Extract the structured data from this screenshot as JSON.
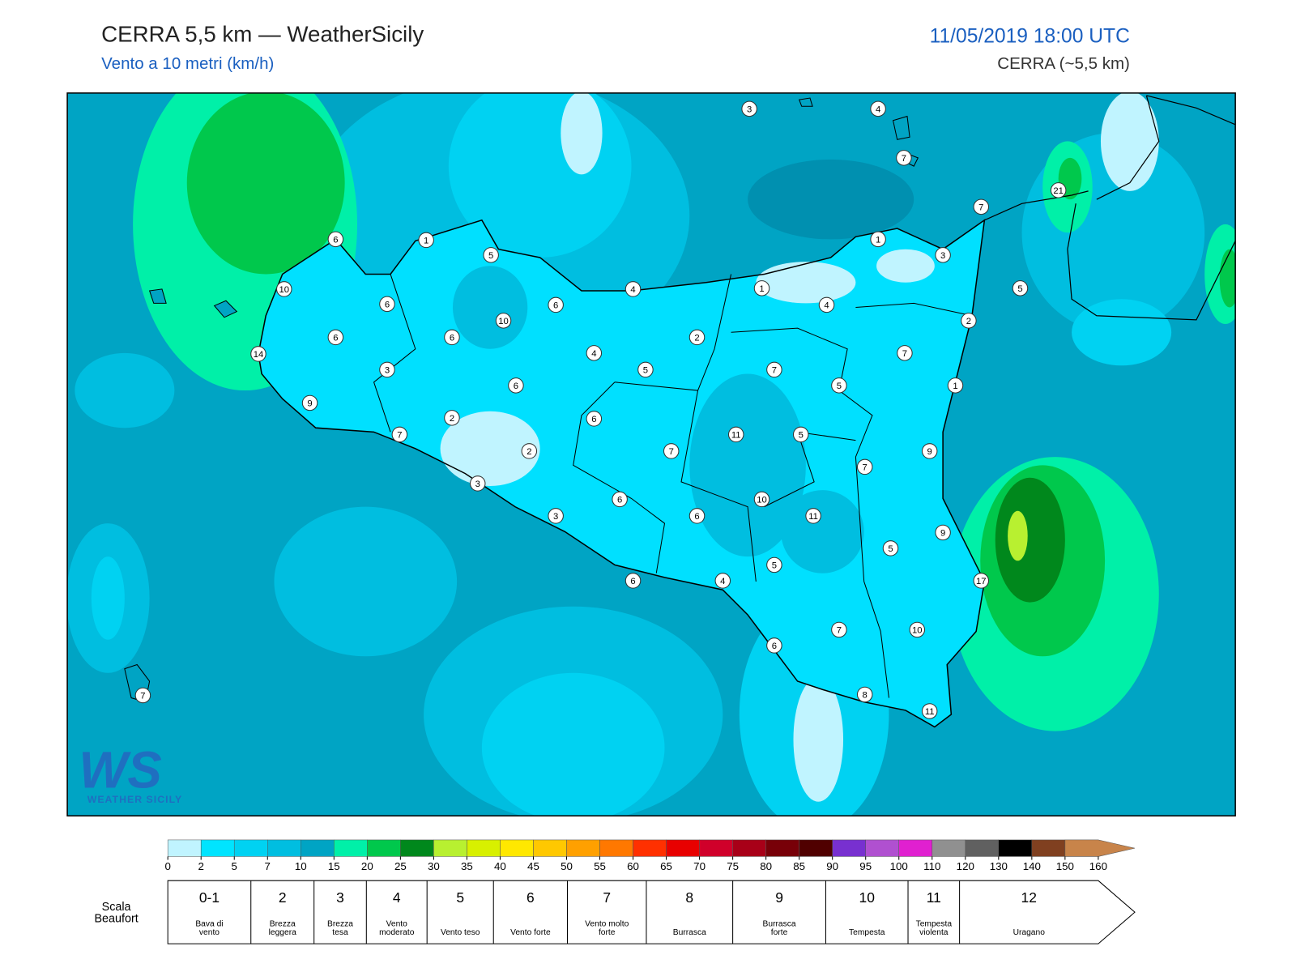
{
  "header": {
    "title": "CERRA 5,5 km — WeatherSicily",
    "subtitle": "Vento a 10 metri (km/h)",
    "datetime": "11/05/2019 18:00 UTC",
    "model": "CERRA (~5,5 km)"
  },
  "logo": {
    "mark": "WS",
    "name": "Weather Sicily"
  },
  "map": {
    "stations": [
      3,
      4,
      7,
      21,
      7,
      6,
      1,
      5,
      1,
      3,
      10,
      4,
      1,
      5,
      6,
      6,
      4,
      2,
      10,
      6,
      6,
      2,
      4,
      7,
      14,
      3,
      5,
      7,
      6,
      5,
      1,
      9,
      2,
      6,
      7,
      11,
      5,
      2,
      7,
      9,
      7,
      3,
      6,
      10,
      3,
      6,
      11,
      9,
      5,
      5,
      17,
      6,
      4,
      7,
      10,
      6,
      7,
      8,
      11
    ]
  },
  "legend": {
    "ticks": [
      0,
      2,
      5,
      7,
      10,
      15,
      20,
      25,
      30,
      35,
      40,
      45,
      50,
      55,
      60,
      65,
      70,
      75,
      80,
      85,
      90,
      95,
      100,
      110,
      120,
      130,
      140,
      150,
      160
    ],
    "colors": [
      "#c0f4ff",
      "#00e4ff",
      "#00d2f2",
      "#00bee0",
      "#00a4c4",
      "#00f0a8",
      "#00c84c",
      "#00881c",
      "#b8f030",
      "#d8f000",
      "#ffe800",
      "#ffc800",
      "#ffa000",
      "#ff7800",
      "#ff3000",
      "#e80000",
      "#d0002a",
      "#a80018",
      "#780008",
      "#500000",
      "#7830d0",
      "#b050d0",
      "#e020d0",
      "#909090",
      "#606060",
      "#000000",
      "#804020",
      "#c8844a"
    ]
  },
  "beaufort": {
    "title": "Scala Beaufort",
    "levels": [
      {
        "force": "0-1",
        "label": "Bava di vento"
      },
      {
        "force": "2",
        "label": "Brezza leggera"
      },
      {
        "force": "3",
        "label": "Brezza tesa"
      },
      {
        "force": "4",
        "label": "Vento moderato"
      },
      {
        "force": "5",
        "label": "Vento teso"
      },
      {
        "force": "6",
        "label": "Vento forte"
      },
      {
        "force": "7",
        "label": "Vento molto forte"
      },
      {
        "force": "8",
        "label": "Burrasca"
      },
      {
        "force": "9",
        "label": "Burrasca forte"
      },
      {
        "force": "10",
        "label": "Tempesta"
      },
      {
        "force": "11",
        "label": "Tempesta violenta"
      },
      {
        "force": "12",
        "label": "Uragano"
      }
    ]
  }
}
